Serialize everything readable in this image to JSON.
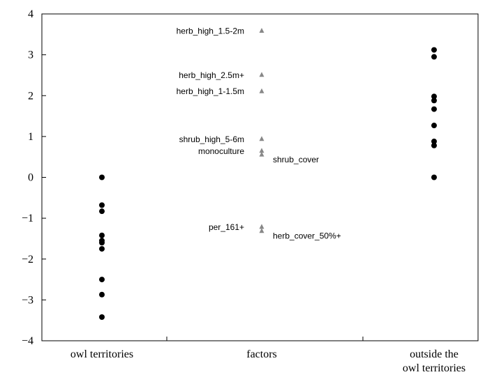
{
  "chart_data": {
    "type": "scatter",
    "title": "",
    "xlabel": "",
    "ylabel": "",
    "ylim": [
      -4,
      4
    ],
    "yticks": [
      -4,
      -3,
      -2,
      -1,
      0,
      1,
      2,
      3,
      4
    ],
    "ytick_labels": [
      "−4",
      "−3",
      "−2",
      "−1",
      "0",
      "1",
      "2",
      "3",
      "4"
    ],
    "categories": [
      "owl territories",
      "factors",
      "outside the owl territories"
    ],
    "category_lines": [
      [
        "owl territories"
      ],
      [
        "factors"
      ],
      [
        "outside the",
        "owl territories"
      ]
    ],
    "grid": false,
    "legend": "none",
    "colors": {
      "points": "#000000",
      "factors": "#888888",
      "axis": "#000000"
    },
    "series": [
      {
        "category": "owl territories",
        "marker": "circle",
        "values": [
          0.0,
          -0.68,
          -0.83,
          -1.42,
          -1.55,
          -1.6,
          -1.75,
          -2.5,
          -2.87,
          -3.42
        ]
      },
      {
        "category": "outside the owl territories",
        "marker": "circle",
        "values": [
          3.12,
          2.95,
          1.98,
          1.88,
          1.67,
          1.27,
          0.88,
          0.78,
          0.0
        ]
      }
    ],
    "factors": [
      {
        "label": "herb_high_1.5-2m",
        "value": 3.6,
        "side": "left"
      },
      {
        "label": "herb_high_2.5m+",
        "value": 2.52,
        "side": "left"
      },
      {
        "label": "herb_high_1-1.5m",
        "value": 2.12,
        "side": "left"
      },
      {
        "label": "shrub_high_5-6m",
        "value": 0.95,
        "side": "left"
      },
      {
        "label": "monoculture",
        "value": 0.66,
        "side": "left"
      },
      {
        "label": "shrub_cover",
        "value": 0.57,
        "side": "right"
      },
      {
        "label": "per_161+",
        "value": -1.2,
        "side": "left"
      },
      {
        "label": "herb_cover_50%+",
        "value": -1.3,
        "side": "right"
      }
    ]
  }
}
